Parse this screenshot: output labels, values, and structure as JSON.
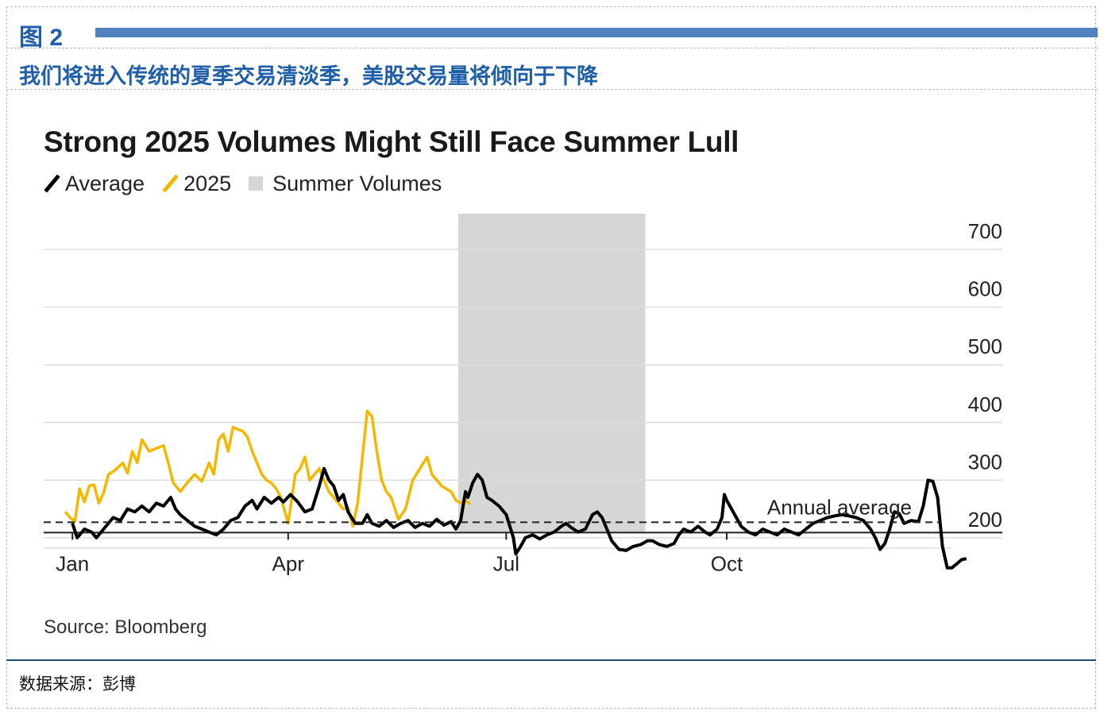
{
  "header": {
    "figure_label": "图 2",
    "subtitle": "我们将进入传统的夏季交易清淡季，美股交易量将倾向于下降"
  },
  "chart_data": {
    "type": "line",
    "title": "Strong 2025 Volumes Might Still Face Summer Lull",
    "legend": [
      "Average",
      "2025",
      "Summer Volumes"
    ],
    "legend_placement": "top-left",
    "colors": {
      "average": "#000000",
      "y2025": "#f5b700",
      "summer": "#d6d6d6",
      "grid": "#dcdcdc"
    },
    "x_ticks": [
      {
        "label": "Jan",
        "day": 1
      },
      {
        "label": "Apr",
        "day": 91
      },
      {
        "label": "Jul",
        "day": 182
      },
      {
        "label": "Oct",
        "day": 274
      }
    ],
    "y_ticks": [
      200,
      300,
      400,
      500,
      600,
      700
    ],
    "y_axis_position": "right",
    "ylim": [
      140,
      760
    ],
    "xlim": [
      -11,
      389
    ],
    "grid": true,
    "summer_band": {
      "from_day": 162,
      "to_day": 240
    },
    "annual_average": {
      "value": 227,
      "label": "Annual average"
    },
    "series": [
      {
        "name": "Average",
        "points": [
          [
            1,
            225
          ],
          [
            3,
            200
          ],
          [
            6,
            215
          ],
          [
            9,
            210
          ],
          [
            11,
            200
          ],
          [
            14,
            215
          ],
          [
            18,
            235
          ],
          [
            21,
            230
          ],
          [
            24,
            250
          ],
          [
            27,
            245
          ],
          [
            30,
            255
          ],
          [
            33,
            245
          ],
          [
            36,
            260
          ],
          [
            39,
            255
          ],
          [
            42,
            270
          ],
          [
            44,
            250
          ],
          [
            46,
            240
          ],
          [
            49,
            230
          ],
          [
            52,
            220
          ],
          [
            55,
            215
          ],
          [
            58,
            210
          ],
          [
            61,
            205
          ],
          [
            64,
            215
          ],
          [
            67,
            230
          ],
          [
            70,
            235
          ],
          [
            73,
            255
          ],
          [
            76,
            265
          ],
          [
            78,
            250
          ],
          [
            81,
            270
          ],
          [
            84,
            260
          ],
          [
            87,
            270
          ],
          [
            89,
            262
          ],
          [
            92,
            275
          ],
          [
            95,
            262
          ],
          [
            98,
            245
          ],
          [
            101,
            250
          ],
          [
            104,
            290
          ],
          [
            106,
            320
          ],
          [
            108,
            300
          ],
          [
            110,
            290
          ],
          [
            112,
            265
          ],
          [
            114,
            275
          ],
          [
            116,
            245
          ],
          [
            119,
            225
          ],
          [
            122,
            225
          ],
          [
            124,
            240
          ],
          [
            126,
            225
          ],
          [
            129,
            220
          ],
          [
            132,
            230
          ],
          [
            135,
            218
          ],
          [
            138,
            225
          ],
          [
            141,
            230
          ],
          [
            144,
            218
          ],
          [
            147,
            225
          ],
          [
            150,
            220
          ],
          [
            153,
            232
          ],
          [
            156,
            222
          ],
          [
            159,
            228
          ],
          [
            161,
            215
          ],
          [
            163,
            230
          ],
          [
            165,
            280
          ],
          [
            166,
            270
          ],
          [
            168,
            295
          ],
          [
            170,
            310
          ],
          [
            172,
            300
          ],
          [
            174,
            270
          ],
          [
            176,
            265
          ],
          [
            179,
            255
          ],
          [
            182,
            240
          ],
          [
            185,
            200
          ],
          [
            186,
            172
          ],
          [
            188,
            185
          ],
          [
            190,
            200
          ],
          [
            193,
            205
          ],
          [
            196,
            198
          ],
          [
            199,
            205
          ],
          [
            202,
            210
          ],
          [
            205,
            220
          ],
          [
            207,
            225
          ],
          [
            209,
            218
          ],
          [
            212,
            210
          ],
          [
            215,
            215
          ],
          [
            218,
            240
          ],
          [
            220,
            245
          ],
          [
            222,
            235
          ],
          [
            224,
            215
          ],
          [
            226,
            195
          ],
          [
            229,
            180
          ],
          [
            232,
            178
          ],
          [
            235,
            185
          ],
          [
            238,
            188
          ],
          [
            241,
            195
          ],
          [
            243,
            195
          ],
          [
            246,
            188
          ],
          [
            249,
            185
          ],
          [
            252,
            190
          ],
          [
            254,
            205
          ],
          [
            256,
            215
          ],
          [
            259,
            210
          ],
          [
            262,
            220
          ],
          [
            265,
            210
          ],
          [
            267,
            205
          ],
          [
            270,
            215
          ],
          [
            272,
            235
          ],
          [
            273,
            275
          ],
          [
            274,
            265
          ],
          [
            276,
            250
          ],
          [
            278,
            235
          ],
          [
            280,
            220
          ],
          [
            283,
            210
          ],
          [
            286,
            205
          ],
          [
            289,
            215
          ],
          [
            292,
            210
          ],
          [
            295,
            205
          ],
          [
            298,
            215
          ],
          [
            301,
            210
          ],
          [
            304,
            205
          ],
          [
            307,
            215
          ],
          [
            310,
            225
          ],
          [
            313,
            230
          ],
          [
            316,
            235
          ],
          [
            319,
            238
          ],
          [
            322,
            240
          ],
          [
            325,
            238
          ],
          [
            328,
            235
          ],
          [
            331,
            230
          ],
          [
            334,
            215
          ],
          [
            336,
            200
          ],
          [
            338,
            180
          ],
          [
            340,
            190
          ],
          [
            342,
            215
          ],
          [
            344,
            245
          ],
          [
            346,
            242
          ],
          [
            348,
            225
          ],
          [
            351,
            230
          ],
          [
            354,
            228
          ],
          [
            356,
            255
          ],
          [
            358,
            300
          ],
          [
            360,
            298
          ],
          [
            362,
            270
          ],
          [
            364,
            185
          ],
          [
            366,
            148
          ],
          [
            368,
            148
          ],
          [
            370,
            155
          ],
          [
            372,
            162
          ],
          [
            374,
            164
          ]
        ]
      },
      {
        "name": "2025",
        "points": [
          [
            -2,
            245
          ],
          [
            0,
            235
          ],
          [
            2,
            228
          ],
          [
            4,
            285
          ],
          [
            6,
            262
          ],
          [
            8,
            290
          ],
          [
            10,
            292
          ],
          [
            12,
            260
          ],
          [
            14,
            278
          ],
          [
            16,
            310
          ],
          [
            18,
            315
          ],
          [
            20,
            322
          ],
          [
            22,
            330
          ],
          [
            24,
            312
          ],
          [
            26,
            350
          ],
          [
            28,
            330
          ],
          [
            30,
            370
          ],
          [
            33,
            350
          ],
          [
            36,
            355
          ],
          [
            39,
            360
          ],
          [
            41,
            330
          ],
          [
            43,
            296
          ],
          [
            46,
            280
          ],
          [
            49,
            296
          ],
          [
            52,
            310
          ],
          [
            55,
            298
          ],
          [
            58,
            330
          ],
          [
            60,
            310
          ],
          [
            62,
            370
          ],
          [
            64,
            380
          ],
          [
            66,
            350
          ],
          [
            68,
            392
          ],
          [
            70,
            388
          ],
          [
            72,
            385
          ],
          [
            74,
            375
          ],
          [
            76,
            350
          ],
          [
            78,
            330
          ],
          [
            80,
            310
          ],
          [
            82,
            300
          ],
          [
            84,
            295
          ],
          [
            86,
            285
          ],
          [
            88,
            270
          ],
          [
            91,
            225
          ],
          [
            94,
            310
          ],
          [
            96,
            320
          ],
          [
            98,
            340
          ],
          [
            100,
            300
          ],
          [
            102,
            310
          ],
          [
            104,
            320
          ],
          [
            106,
            300
          ],
          [
            108,
            280
          ],
          [
            110,
            270
          ],
          [
            112,
            260
          ],
          [
            114,
            250
          ],
          [
            116,
            252
          ],
          [
            118,
            220
          ],
          [
            120,
            260
          ],
          [
            122,
            340
          ],
          [
            124,
            420
          ],
          [
            126,
            410
          ],
          [
            128,
            350
          ],
          [
            130,
            300
          ],
          [
            132,
            280
          ],
          [
            134,
            270
          ],
          [
            137,
            232
          ],
          [
            140,
            250
          ],
          [
            143,
            300
          ],
          [
            146,
            320
          ],
          [
            149,
            340
          ],
          [
            151,
            310
          ],
          [
            153,
            300
          ],
          [
            155,
            290
          ],
          [
            157,
            285
          ],
          [
            159,
            280
          ],
          [
            161,
            265
          ],
          [
            163,
            260
          ],
          [
            165,
            265
          ],
          [
            167,
            258
          ]
        ]
      }
    ]
  },
  "source_note": "Source: Bloomberg",
  "footer": {
    "data_source": "数据来源：彭博"
  }
}
